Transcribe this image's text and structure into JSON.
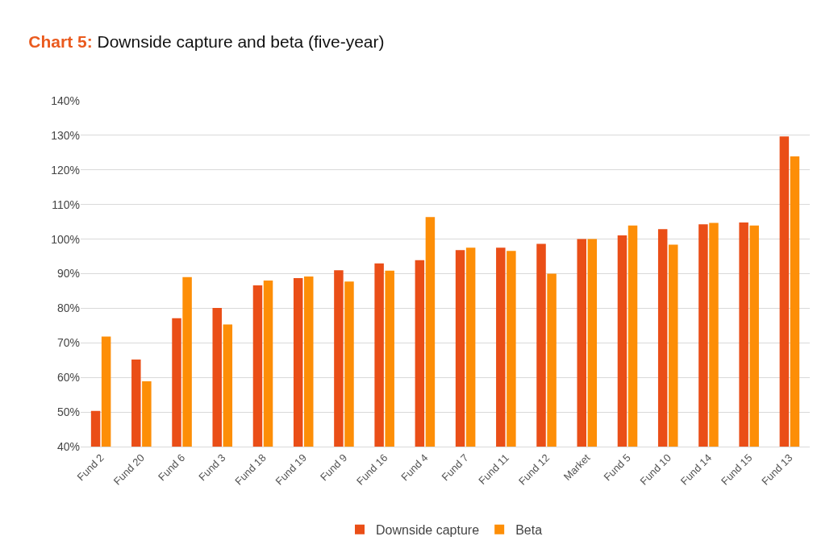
{
  "chart_data": {
    "type": "bar",
    "title": "Chart 5: Downside capture and beta (five-year)",
    "categories": [
      "Fund 2",
      "Fund 20",
      "Fund 6",
      "Fund 3",
      "Fund 18",
      "Fund 19",
      "Fund 9",
      "Fund 16",
      "Fund 4",
      "Fund 7",
      "Fund 11",
      "Fund 12",
      "Market",
      "Fund 5",
      "Fund 10",
      "Fund 14",
      "Fund 15",
      "Fund 13"
    ],
    "series": [
      {
        "name": "Downside capture",
        "color": "#ea4e17",
        "values": [
          50.3,
          65.2,
          77.1,
          80.1,
          86.6,
          88.7,
          91.0,
          93.0,
          93.9,
          96.8,
          97.5,
          98.6,
          100,
          101.1,
          102.9,
          104.3,
          104.8,
          129.7
        ]
      },
      {
        "name": "Beta",
        "color": "#fd8e07",
        "values": [
          71.8,
          58.9,
          89.0,
          75.3,
          88.0,
          89.2,
          87.7,
          90.9,
          106.4,
          97.5,
          96.6,
          90.0,
          100,
          103.9,
          98.4,
          104.7,
          103.9,
          123.9
        ]
      }
    ],
    "ylim": [
      40,
      140
    ],
    "yticks": [
      {
        "value": 40,
        "label": "40%"
      },
      {
        "value": 50,
        "label": "50%"
      },
      {
        "value": 60,
        "label": "60%"
      },
      {
        "value": 70,
        "label": "70%"
      },
      {
        "value": 80,
        "label": "80%"
      },
      {
        "value": 90,
        "label": "90%"
      },
      {
        "value": 100,
        "label": "100%"
      },
      {
        "value": 110,
        "label": "110%"
      },
      {
        "value": 120,
        "label": "120%"
      },
      {
        "value": 130,
        "label": "130%"
      },
      {
        "value": 140,
        "label": "140%"
      }
    ],
    "grid": "y",
    "legend": "bottom"
  }
}
